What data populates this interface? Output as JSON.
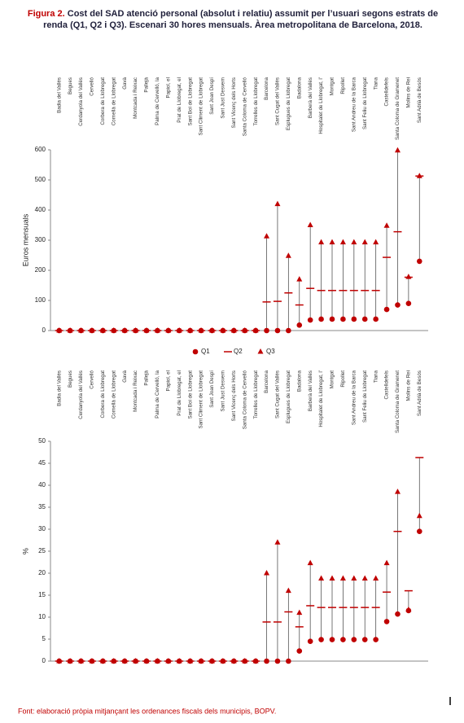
{
  "figure": {
    "label": "Figura 2.",
    "title_line1": "Cost del SAD atenció personal (absolut i relatiu) assumit per l’usuari segons estrats de",
    "title_line2": "renda (Q1, Q2 i Q3). Escenari 30 hores mensuals. Àrea metropolitana de Barcelona, 2018."
  },
  "source": "Font: elaboració pròpia mitjançant les ordenances fiscals dels municipis, BOPV.",
  "chart_data": [
    {
      "type": "range",
      "ylabel": "Euros mensuals",
      "ylim": [
        0,
        600
      ],
      "yticks": [
        0,
        100,
        200,
        300,
        400,
        500,
        600
      ],
      "legend": true,
      "categories": [
        "Badia del Vallès",
        "Begues",
        "Cerdanyola del Vallès",
        "Cervelló",
        "Corbera de Llobregat",
        "Cornellà de Llobregat",
        "Gavà",
        "Montcada i Reixac",
        "Pallejà",
        "Palma de Cervelló, la",
        "Papiol, el",
        "Prat de Llobregat, el",
        "Sant Boi de Llobregat",
        "Sant Climent de Llobregat",
        "Sant Joan Despí",
        "Sant Just Desvern",
        "Sant Vicenç dels Horts",
        "Santa Coloma de Cervelló",
        "Torrelles de Llobregat",
        "Barcelona",
        "Sant Cugat del Vallès",
        "Esplugues de Llobregat",
        "Badalona",
        "Barberà del Vallès",
        "Hospitalet de Llobregat, l'",
        "Montgat",
        "Ripollet",
        "Sant Andreu de la Barca",
        "Sant Feliu de Llobregat",
        "Tiana",
        "Castelldefels",
        "Santa Coloma de Gramenet",
        "Molins de Rei",
        "Sant Adrià de Besòs"
      ],
      "series": [
        {
          "name": "Q1",
          "color": "#c00000",
          "marker": "circle",
          "values": [
            0,
            0,
            0,
            0,
            0,
            0,
            0,
            0,
            0,
            0,
            0,
            0,
            0,
            0,
            0,
            0,
            0,
            0,
            0,
            0,
            0,
            0,
            18,
            35,
            38,
            38,
            38,
            38,
            38,
            38,
            70,
            85,
            90,
            230
          ]
        },
        {
          "name": "Q2",
          "color": "#c00000",
          "marker": "dash",
          "values": [
            0,
            0,
            0,
            0,
            0,
            0,
            0,
            0,
            0,
            0,
            0,
            0,
            0,
            0,
            0,
            0,
            0,
            0,
            0,
            95,
            97,
            125,
            85,
            140,
            133,
            133,
            133,
            133,
            133,
            133,
            243,
            328,
            177,
            513
          ]
        },
        {
          "name": "Q3",
          "color": "#c00000",
          "marker": "triangle",
          "values": [
            0,
            0,
            0,
            0,
            0,
            0,
            0,
            0,
            0,
            0,
            0,
            0,
            0,
            0,
            0,
            0,
            0,
            0,
            0,
            313,
            420,
            248,
            170,
            350,
            293,
            293,
            293,
            293,
            293,
            293,
            348,
            598,
            178,
            513
          ]
        }
      ]
    },
    {
      "type": "range",
      "ylabel": "%",
      "ylim": [
        0,
        50
      ],
      "yticks": [
        0,
        5,
        10,
        15,
        20,
        25,
        30,
        35,
        40,
        45,
        50
      ],
      "legend": false,
      "categories": [
        "Badia del Vallès",
        "Begues",
        "Cerdanyola del Vallès",
        "Cervelló",
        "Corbera de Llobregat",
        "Cornellà de Llobregat",
        "Gavà",
        "Montcada i Reixac",
        "Pallejà",
        "Palma de Cervelló, la",
        "Papiol, el",
        "Prat de Llobregat, el",
        "Sant Boi de Llobregat",
        "Sant Climent de Llobregat",
        "Sant Joan Despí",
        "Sant Just Desvern",
        "Sant Vicenç dels Horts",
        "Santa Coloma de Cervelló",
        "Torrelles de Llobregat",
        "Barcelona",
        "Sant Cugat del Vallès",
        "Esplugues de Llobregat",
        "Badalona",
        "Barberà del Vallès",
        "Hospitalet de Llobregat, l'",
        "Montgat",
        "Ripollet",
        "Sant Andreu de la Barca",
        "Sant Feliu de Llobregat",
        "Tiana",
        "Castelldefels",
        "Santa Coloma de Gramenet",
        "Molins de Rei",
        "Sant Adrià de Besòs"
      ],
      "series": [
        {
          "color": "#c00000",
          "marker": "circle",
          "values": [
            0,
            0,
            0,
            0,
            0,
            0,
            0,
            0,
            0,
            0,
            0,
            0,
            0,
            0,
            0,
            0,
            0,
            0,
            0,
            0,
            0,
            0,
            2.3,
            4.5,
            4.9,
            4.9,
            4.9,
            4.9,
            4.9,
            4.9,
            9,
            10.7,
            11.5,
            29.5
          ]
        },
        {
          "color": "#c00000",
          "marker": "dash",
          "values": [
            0,
            0,
            0,
            0,
            0,
            0,
            0,
            0,
            0,
            0,
            0,
            0,
            0,
            0,
            0,
            0,
            0,
            0,
            0,
            8.9,
            8.9,
            11.2,
            7.8,
            12.6,
            12.2,
            12.2,
            12.2,
            12.2,
            12.2,
            12.2,
            15.7,
            29.5,
            16,
            46.3
          ]
        },
        {
          "color": "#c00000",
          "marker": "triangle",
          "values": [
            0,
            0,
            0,
            0,
            0,
            0,
            0,
            0,
            0,
            0,
            0,
            0,
            0,
            0,
            0,
            0,
            0,
            0,
            0,
            20,
            27,
            16,
            11,
            22.3,
            18.8,
            18.8,
            18.8,
            18.8,
            18.8,
            18.8,
            22.3,
            38.5,
            11.7,
            33
          ]
        }
      ]
    }
  ]
}
